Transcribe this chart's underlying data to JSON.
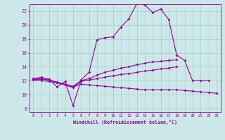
{
  "xlabel": "Windchill (Refroidissement éolien,°C)",
  "background_color": "#cce8e8",
  "grid_color": "#aacccc",
  "line_color": "#990099",
  "xlim": [
    -0.5,
    23.5
  ],
  "ylim": [
    7.5,
    23.0
  ],
  "xticks": [
    0,
    1,
    2,
    3,
    4,
    5,
    6,
    7,
    8,
    9,
    10,
    11,
    12,
    13,
    14,
    15,
    16,
    17,
    18,
    19,
    20,
    21,
    22,
    23
  ],
  "yticks": [
    8,
    10,
    12,
    14,
    16,
    18,
    20,
    22
  ],
  "lines": [
    {
      "x": [
        0,
        1,
        2,
        3,
        4,
        5,
        6,
        7,
        8,
        9,
        10,
        11,
        12,
        13,
        14,
        15,
        16,
        17,
        18,
        19,
        20,
        21,
        22
      ],
      "y": [
        12.3,
        12.5,
        12.2,
        11.1,
        11.9,
        8.4,
        12.1,
        13.2,
        17.9,
        18.2,
        18.3,
        19.7,
        20.9,
        23.1,
        22.9,
        21.8,
        22.3,
        20.8,
        15.7,
        14.9,
        12.0,
        12.0,
        12.0
      ]
    },
    {
      "x": [
        0,
        1,
        2,
        3,
        4,
        5,
        6,
        7,
        8,
        9,
        10,
        11,
        12,
        13,
        14,
        15,
        16,
        17,
        18
      ],
      "y": [
        12.2,
        12.3,
        12.1,
        11.8,
        11.5,
        11.2,
        12.0,
        12.3,
        12.8,
        13.2,
        13.5,
        13.8,
        14.0,
        14.3,
        14.5,
        14.7,
        14.8,
        14.9,
        15.0
      ]
    },
    {
      "x": [
        0,
        1,
        2,
        3,
        4,
        5,
        6,
        7,
        8,
        9,
        10,
        11,
        12,
        13,
        14,
        15,
        16,
        17,
        18
      ],
      "y": [
        12.2,
        12.2,
        12.1,
        11.7,
        11.4,
        11.0,
        11.9,
        12.1,
        12.3,
        12.5,
        12.7,
        12.9,
        13.0,
        13.2,
        13.4,
        13.5,
        13.7,
        13.8,
        14.0
      ]
    },
    {
      "x": [
        0,
        1,
        2,
        3,
        4,
        5,
        6,
        7,
        8,
        9,
        10,
        11,
        12,
        13,
        14,
        15,
        16,
        17,
        18,
        19,
        20,
        21,
        22,
        23
      ],
      "y": [
        12.1,
        12.0,
        11.9,
        11.7,
        11.4,
        11.1,
        11.5,
        11.4,
        11.3,
        11.2,
        11.1,
        11.0,
        10.9,
        10.8,
        10.7,
        10.7,
        10.7,
        10.7,
        10.7,
        10.6,
        10.5,
        10.4,
        10.3,
        10.2
      ]
    }
  ]
}
